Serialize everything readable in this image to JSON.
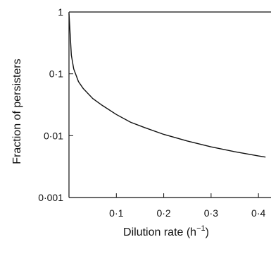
{
  "chart_data": {
    "type": "line",
    "xlabel": "Dilution rate (h",
    "xlabel_superscript": "−1",
    "xlabel_suffix": ")",
    "ylabel": "Fraction of persisters",
    "yscale": "log",
    "xlim": [
      0,
      0.42
    ],
    "ylim": [
      0.001,
      1
    ],
    "x_ticks": [
      {
        "value": 0.1,
        "label": "0·1"
      },
      {
        "value": 0.2,
        "label": "0·2"
      },
      {
        "value": 0.3,
        "label": "0·3"
      },
      {
        "value": 0.4,
        "label": "0·4"
      }
    ],
    "y_ticks": [
      {
        "value": 1,
        "label": "1"
      },
      {
        "value": 0.1,
        "label": "0·1"
      },
      {
        "value": 0.01,
        "label": "0·01"
      },
      {
        "value": 0.001,
        "label": "0·001"
      }
    ],
    "grid": false,
    "series": [
      {
        "color": "#111111",
        "x": [
          0.0,
          0.005,
          0.01,
          0.02,
          0.03,
          0.05,
          0.07,
          0.1,
          0.13,
          0.16,
          0.2,
          0.25,
          0.3,
          0.35,
          0.4,
          0.415
        ],
        "y": [
          0.95,
          0.2,
          0.12,
          0.075,
          0.058,
          0.04,
          0.031,
          0.022,
          0.0165,
          0.0135,
          0.0105,
          0.0082,
          0.0066,
          0.0055,
          0.0047,
          0.0045
        ]
      }
    ]
  }
}
